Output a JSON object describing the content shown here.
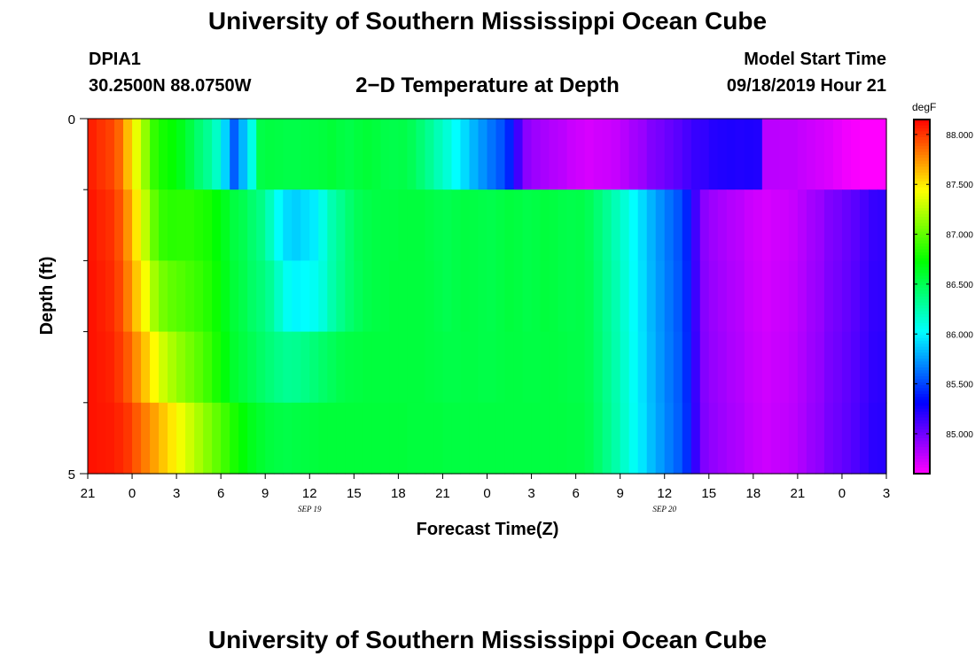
{
  "header": {
    "title": "University of Southern Mississippi Ocean Cube",
    "station_id": "DPIA1",
    "coords": "30.2500N 88.0750W",
    "plot_title": "2−D Temperature at Depth",
    "model_start_label": "Model Start Time",
    "model_start_value": "09/18/2019 Hour 21"
  },
  "footer": {
    "title": "University of Southern Mississippi Ocean Cube"
  },
  "chart_data": {
    "type": "heatmap",
    "title": "2−D Temperature at Depth",
    "xlabel": "Forecast Time(Z)",
    "ylabel": "Depth (ft)",
    "x_hours": [
      0,
      54
    ],
    "y_range": [
      0,
      5
    ],
    "y_tick_labels": [
      {
        "v": 0,
        "label": "0"
      },
      {
        "v": 5,
        "label": "5"
      }
    ],
    "y_minor_ticks": [
      1,
      2,
      3,
      4
    ],
    "x_tick_labels": [
      "21",
      "0",
      "3",
      "6",
      "9",
      "12",
      "15",
      "18",
      "21",
      "0",
      "3",
      "6",
      "9",
      "12",
      "15",
      "18",
      "21",
      "0",
      "3"
    ],
    "date_labels": [
      {
        "hour": 15,
        "label": "SEP 19"
      },
      {
        "hour": 39,
        "label": "SEP 20"
      }
    ],
    "depth_layers": 5,
    "colorbar": {
      "unit": "degF",
      "min": 84.6,
      "max": 88.15,
      "tick_values": [
        88.0,
        87.5,
        87.0,
        86.5,
        86.0,
        85.5,
        85.0
      ],
      "tick_labels": [
        "88.000",
        "87.500",
        "87.000",
        "86.500",
        "86.000",
        "85.500",
        "85.000"
      ]
    },
    "temperature_by_layer": [
      [
        88.06,
        88.01,
        87.97,
        87.87,
        87.63,
        87.38,
        87.13,
        86.87,
        86.78,
        86.74,
        86.66,
        86.55,
        86.42,
        86.32,
        86.18,
        85.9,
        85.57,
        85.82,
        86.09,
        86.53,
        86.55,
        86.54,
        86.53,
        86.53,
        86.54,
        86.55,
        86.56,
        86.58,
        86.55,
        86.53,
        86.56,
        86.58,
        86.56,
        86.53,
        86.52,
        86.53,
        86.49,
        86.41,
        86.32,
        86.22,
        86.13,
        86.02,
        85.92,
        85.81,
        85.72,
        85.63,
        85.55,
        85.41,
        85.13,
        84.92,
        84.87,
        84.84,
        84.81,
        84.79,
        84.75,
        84.73,
        84.71,
        84.73,
        84.74,
        84.76,
        84.8,
        84.85,
        84.88,
        84.95,
        84.98,
        85.02,
        85.06,
        85.11,
        85.16,
        85.17,
        85.21,
        85.22,
        85.23,
        85.22,
        85.23,
        85.22,
        84.79,
        84.79,
        84.78,
        84.78,
        84.76,
        84.74,
        84.72,
        84.7,
        84.67,
        84.64,
        84.62,
        84.59,
        84.59,
        84.58
      ],
      [
        88.09,
        88.05,
        88.02,
        87.93,
        87.74,
        87.5,
        87.26,
        87.0,
        86.87,
        86.84,
        86.85,
        86.85,
        86.82,
        86.79,
        86.72,
        86.64,
        86.55,
        86.51,
        86.43,
        86.36,
        86.21,
        86.03,
        85.92,
        85.89,
        85.93,
        85.97,
        86.09,
        86.24,
        86.33,
        86.42,
        86.49,
        86.52,
        86.54,
        86.55,
        86.55,
        86.56,
        86.56,
        86.56,
        86.54,
        86.52,
        86.51,
        86.53,
        86.55,
        86.54,
        86.53,
        86.52,
        86.54,
        86.56,
        86.55,
        86.53,
        86.54,
        86.56,
        86.55,
        86.53,
        86.52,
        86.53,
        86.49,
        86.41,
        86.32,
        86.22,
        86.13,
        86.02,
        85.92,
        85.81,
        85.72,
        85.63,
        85.55,
        85.41,
        85.13,
        84.92,
        84.87,
        84.84,
        84.81,
        84.79,
        84.75,
        84.73,
        84.71,
        84.73,
        84.74,
        84.76,
        84.8,
        84.85,
        84.88,
        84.95,
        84.98,
        85.02,
        85.06,
        85.11,
        85.16,
        85.17
      ],
      [
        88.1,
        88.07,
        88.04,
        87.96,
        87.8,
        87.6,
        87.42,
        87.18,
        87.05,
        86.99,
        86.96,
        86.92,
        86.88,
        86.83,
        86.76,
        86.66,
        86.57,
        86.52,
        86.45,
        86.4,
        86.32,
        86.18,
        86.05,
        86.0,
        86.02,
        86.05,
        86.12,
        86.25,
        86.34,
        86.42,
        86.48,
        86.52,
        86.54,
        86.55,
        86.56,
        86.56,
        86.56,
        86.56,
        86.55,
        86.53,
        86.51,
        86.53,
        86.55,
        86.54,
        86.53,
        86.52,
        86.54,
        86.56,
        86.55,
        86.53,
        86.54,
        86.56,
        86.55,
        86.53,
        86.52,
        86.53,
        86.5,
        86.42,
        86.33,
        86.24,
        86.14,
        86.03,
        85.93,
        85.82,
        85.73,
        85.64,
        85.56,
        85.42,
        85.14,
        84.93,
        84.88,
        84.85,
        84.82,
        84.8,
        84.76,
        84.74,
        84.72,
        84.74,
        84.75,
        84.77,
        84.81,
        84.86,
        84.89,
        84.96,
        84.99,
        85.03,
        85.07,
        85.12,
        85.17,
        85.18
      ],
      [
        88.1,
        88.08,
        88.06,
        88.0,
        87.9,
        87.75,
        87.6,
        87.45,
        87.3,
        87.2,
        87.12,
        87.05,
        86.98,
        86.9,
        86.8,
        86.7,
        86.6,
        86.55,
        86.5,
        86.45,
        86.4,
        86.35,
        86.32,
        86.33,
        86.36,
        86.4,
        86.44,
        86.48,
        86.52,
        86.54,
        86.55,
        86.56,
        86.56,
        86.56,
        86.56,
        86.56,
        86.56,
        86.56,
        86.55,
        86.54,
        86.53,
        86.53,
        86.54,
        86.54,
        86.53,
        86.53,
        86.54,
        86.55,
        86.55,
        86.54,
        86.54,
        86.55,
        86.55,
        86.54,
        86.53,
        86.53,
        86.5,
        86.43,
        86.34,
        86.25,
        86.15,
        86.04,
        85.94,
        85.83,
        85.74,
        85.65,
        85.57,
        85.43,
        85.15,
        84.94,
        84.89,
        84.86,
        84.83,
        84.81,
        84.77,
        84.75,
        84.73,
        84.75,
        84.76,
        84.78,
        84.82,
        84.87,
        84.9,
        84.97,
        85.0,
        85.04,
        85.08,
        85.13,
        85.18,
        85.19
      ],
      [
        88.1,
        88.09,
        88.08,
        88.05,
        88.0,
        87.9,
        87.8,
        87.7,
        87.6,
        87.5,
        87.4,
        87.3,
        87.2,
        87.1,
        87.0,
        86.9,
        86.8,
        86.72,
        86.65,
        86.6,
        86.56,
        86.54,
        86.53,
        86.54,
        86.55,
        86.56,
        86.57,
        86.57,
        86.57,
        86.57,
        86.57,
        86.57,
        86.57,
        86.57,
        86.57,
        86.57,
        86.56,
        86.56,
        86.56,
        86.56,
        86.55,
        86.55,
        86.55,
        86.55,
        86.55,
        86.55,
        86.55,
        86.55,
        86.55,
        86.55,
        86.55,
        86.55,
        86.55,
        86.55,
        86.54,
        86.54,
        86.51,
        86.44,
        86.35,
        86.26,
        86.16,
        86.05,
        85.95,
        85.84,
        85.75,
        85.66,
        85.58,
        85.44,
        85.16,
        84.95,
        84.9,
        84.87,
        84.84,
        84.82,
        84.78,
        84.76,
        84.74,
        84.76,
        84.77,
        84.79,
        84.83,
        84.88,
        84.91,
        84.98,
        85.01,
        85.05,
        85.09,
        85.14,
        85.19,
        85.2
      ]
    ]
  }
}
